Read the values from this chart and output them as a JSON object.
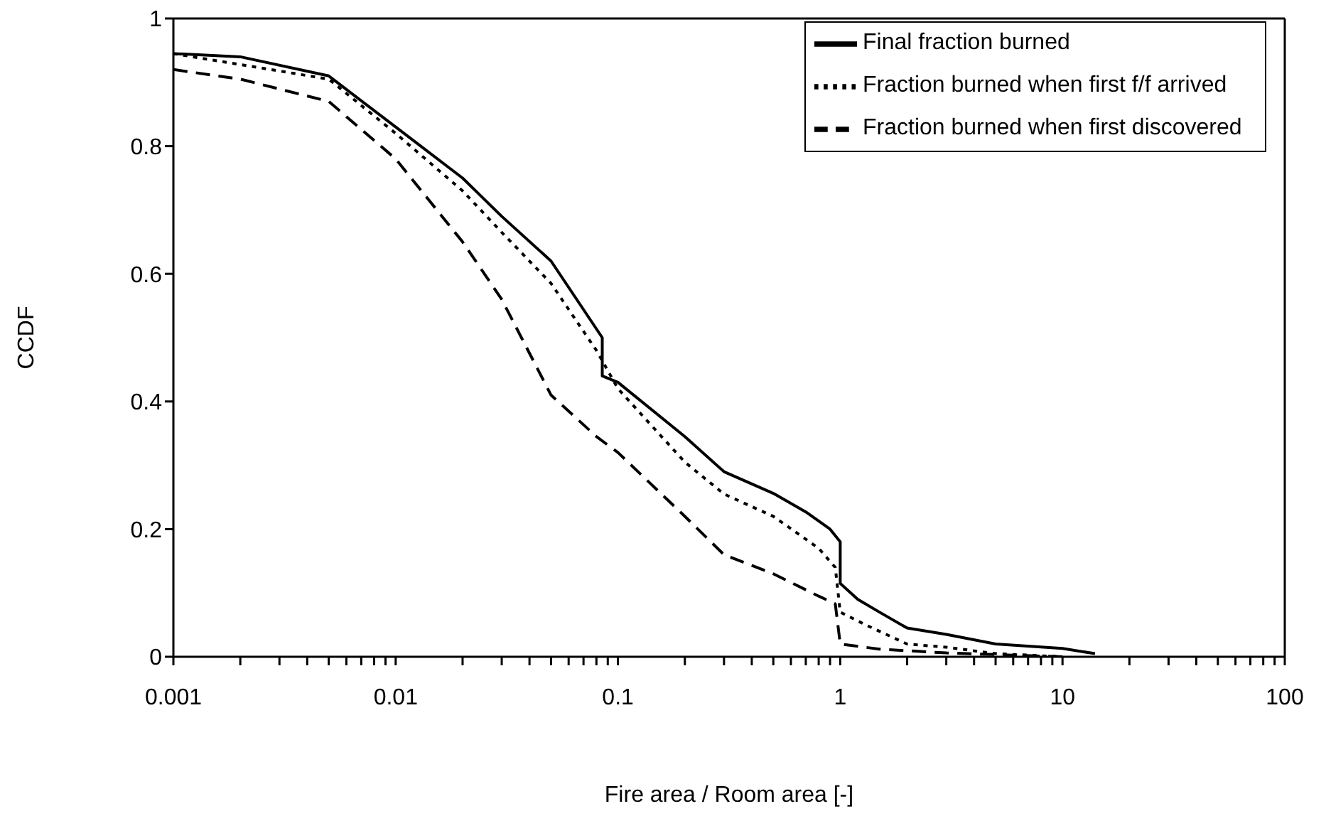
{
  "chart_data": {
    "type": "line",
    "xlabel": "Fire area / Room area [-]",
    "ylabel": "CCDF",
    "log": "x",
    "grid": false,
    "legend": "top right",
    "marker": "none",
    "xlim": [
      0.001,
      100
    ],
    "xticks": [
      0.001,
      {
        "value": 0.002,
        "label": null
      },
      {
        "value": 0.003,
        "label": null
      },
      {
        "value": 0.004,
        "label": null
      },
      {
        "value": 0.005,
        "label": null
      },
      {
        "value": 0.006,
        "label": null
      },
      {
        "value": 0.007,
        "label": null
      },
      {
        "value": 0.008,
        "label": null
      },
      {
        "value": 0.009,
        "label": null
      },
      0.01,
      {
        "value": 0.02,
        "label": null
      },
      {
        "value": 0.03,
        "label": null
      },
      {
        "value": 0.04,
        "label": null
      },
      {
        "value": 0.05,
        "label": null
      },
      {
        "value": 0.06,
        "label": null
      },
      {
        "value": 0.07,
        "label": null
      },
      {
        "value": 0.08,
        "label": null
      },
      {
        "value": 0.09,
        "label": null
      },
      0.1,
      {
        "value": 0.2,
        "label": null
      },
      {
        "value": 0.3,
        "label": null
      },
      {
        "value": 0.4,
        "label": null
      },
      {
        "value": 0.5,
        "label": null
      },
      {
        "value": 0.6,
        "label": null
      },
      {
        "value": 0.7,
        "label": null
      },
      {
        "value": 0.8,
        "label": null
      },
      {
        "value": 0.9,
        "label": null
      },
      1,
      {
        "value": 2,
        "label": null
      },
      {
        "value": 3,
        "label": null
      },
      {
        "value": 4,
        "label": null
      },
      {
        "value": 5,
        "label": null
      },
      {
        "value": 6,
        "label": null
      },
      {
        "value": 7,
        "label": null
      },
      {
        "value": 8,
        "label": null
      },
      {
        "value": 9,
        "label": null
      },
      10,
      {
        "value": 20,
        "label": null
      },
      {
        "value": 30,
        "label": null
      },
      {
        "value": 40,
        "label": null
      },
      {
        "value": 50,
        "label": null
      },
      {
        "value": 60,
        "label": null
      },
      {
        "value": 70,
        "label": null
      },
      {
        "value": 80,
        "label": null
      },
      {
        "value": 90,
        "label": null
      },
      100
    ],
    "ylim": [
      0,
      1
    ],
    "yticks": [
      0,
      0.2,
      0.4,
      0.6,
      0.8,
      1
    ],
    "series": [
      {
        "name": "Final fraction burned",
        "color": "#000000",
        "line_style": "solid",
        "x": [
          0.001,
          0.002,
          0.005,
          0.01,
          0.02,
          0.03,
          0.05,
          0.085,
          0.085,
          0.1,
          0.2,
          0.3,
          0.5,
          0.7,
          0.9,
          1,
          1,
          1.2,
          1.5,
          2,
          3,
          5,
          10,
          14
        ],
        "values": [
          0.945,
          0.94,
          0.91,
          0.83,
          0.75,
          0.69,
          0.62,
          0.5,
          0.44,
          0.43,
          0.345,
          0.29,
          0.256,
          0.227,
          0.2,
          0.18,
          0.115,
          0.09,
          0.07,
          0.045,
          0.035,
          0.02,
          0.013,
          0.005
        ]
      },
      {
        "name": "Fraction burned when first f/f arrived",
        "color": "#000000",
        "line_style": "dotted",
        "x": [
          0.001,
          0.005,
          0.01,
          0.02,
          0.03,
          0.05,
          0.08,
          0.1,
          0.2,
          0.3,
          0.5,
          0.8,
          0.95,
          1,
          1.3,
          2,
          3,
          5,
          10
        ],
        "values": [
          0.945,
          0.905,
          0.82,
          0.73,
          0.665,
          0.585,
          0.48,
          0.42,
          0.305,
          0.255,
          0.22,
          0.17,
          0.14,
          0.07,
          0.05,
          0.02,
          0.015,
          0.005,
          0
        ]
      },
      {
        "name": "Fraction burned when first discovered",
        "color": "#000000",
        "line_style": "dashed",
        "x": [
          0.001,
          0.002,
          0.005,
          0.01,
          0.02,
          0.03,
          0.05,
          0.08,
          0.1,
          0.2,
          0.3,
          0.5,
          0.8,
          0.95,
          1,
          1.5,
          3,
          10
        ],
        "values": [
          0.92,
          0.905,
          0.87,
          0.78,
          0.65,
          0.56,
          0.41,
          0.345,
          0.32,
          0.22,
          0.16,
          0.13,
          0.095,
          0.083,
          0.02,
          0.012,
          0.006,
          0
        ]
      }
    ]
  }
}
